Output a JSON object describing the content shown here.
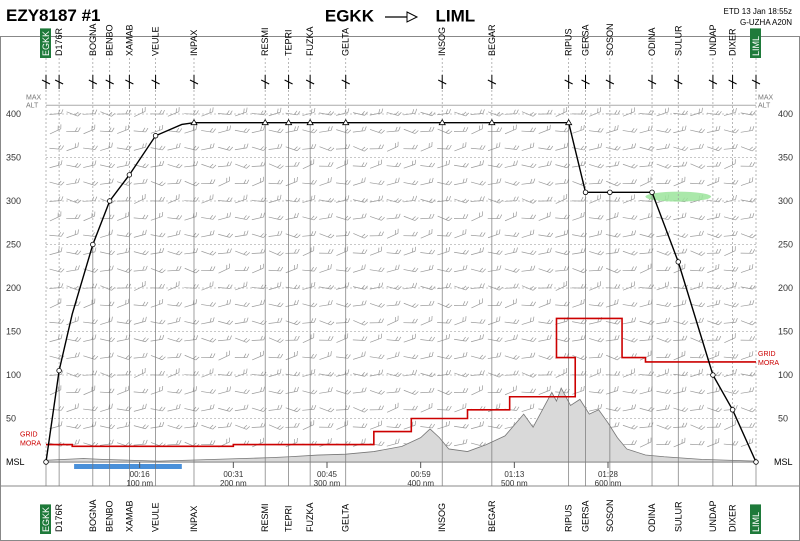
{
  "header": {
    "flight": "EZY8187 #1",
    "origin": "EGKK",
    "destination": "LIML",
    "etd": "ETD 13 Jan 18:55z",
    "aircraft": "G-UZHA A20N"
  },
  "labels": {
    "max_alt_line1": "MAX",
    "max_alt_line2": "ALT",
    "grid_mora_line1": "GRID",
    "grid_mora_line2": "MORA",
    "msl": "MSL"
  },
  "colors": {
    "mora": "#cc0000",
    "terrain": "#d9d9d9",
    "water": "#4a90d9",
    "cloud": "#9be49b",
    "waypoint_badge": "#1e7a3a"
  },
  "chart_data": {
    "type": "line",
    "title": "",
    "ylabel": "",
    "y_ticks": [
      50,
      100,
      150,
      200,
      250,
      300,
      350,
      400
    ],
    "ylim": [
      0,
      430
    ],
    "max_alt": 410,
    "time_ticks": [
      {
        "nm": 100,
        "time": "00:16",
        "dist": "100 nm"
      },
      {
        "nm": 200,
        "time": "00:31",
        "dist": "200 nm"
      },
      {
        "nm": 300,
        "time": "00:45",
        "dist": "300 nm"
      },
      {
        "nm": 400,
        "time": "00:59",
        "dist": "400 nm"
      },
      {
        "nm": 500,
        "time": "01:13",
        "dist": "500 nm"
      },
      {
        "nm": 600,
        "time": "01:28",
        "dist": "600 nm"
      }
    ],
    "waypoints": [
      {
        "name": "EGKK",
        "nm": 0,
        "fl": 0,
        "badge": true
      },
      {
        "name": "D176R",
        "nm": 14,
        "fl": 105
      },
      {
        "name": "BOGNA",
        "nm": 50,
        "fl": 250
      },
      {
        "name": "BENBO",
        "nm": 68,
        "fl": 300
      },
      {
        "name": "XAMAB",
        "nm": 89,
        "fl": 330
      },
      {
        "name": "VEULE",
        "nm": 117,
        "fl": 375
      },
      {
        "name": "INPAX",
        "nm": 158,
        "fl": 390
      },
      {
        "name": "RESMI",
        "nm": 234,
        "fl": 390
      },
      {
        "name": "TEPRI",
        "nm": 259,
        "fl": 390
      },
      {
        "name": "FUZKA",
        "nm": 282,
        "fl": 390
      },
      {
        "name": "GELTA",
        "nm": 320,
        "fl": 390
      },
      {
        "name": "INSOG",
        "nm": 423,
        "fl": 390
      },
      {
        "name": "BEGAR",
        "nm": 476,
        "fl": 390
      },
      {
        "name": "RIPUS",
        "nm": 558,
        "fl": 390
      },
      {
        "name": "GERSA",
        "nm": 576,
        "fl": 310
      },
      {
        "name": "SOSON",
        "nm": 602,
        "fl": 310
      },
      {
        "name": "ODINA",
        "nm": 647,
        "fl": 310
      },
      {
        "name": "SULUR",
        "nm": 675,
        "fl": 230
      },
      {
        "name": "UNDAP",
        "nm": 712,
        "fl": 100
      },
      {
        "name": "DIXER",
        "nm": 733,
        "fl": 60
      },
      {
        "name": "LIML",
        "nm": 758,
        "fl": 0,
        "badge": true
      }
    ],
    "profile": [
      [
        0,
        0
      ],
      [
        14,
        105
      ],
      [
        28,
        170
      ],
      [
        50,
        250
      ],
      [
        68,
        300
      ],
      [
        89,
        330
      ],
      [
        117,
        375
      ],
      [
        145,
        388
      ],
      [
        158,
        390
      ],
      [
        558,
        390
      ],
      [
        576,
        310
      ],
      [
        647,
        310
      ],
      [
        675,
        230
      ],
      [
        712,
        100
      ],
      [
        733,
        60
      ],
      [
        758,
        0
      ]
    ],
    "mora_steps": [
      [
        0,
        20
      ],
      [
        28,
        20
      ],
      [
        28,
        18
      ],
      [
        200,
        18
      ],
      [
        200,
        20
      ],
      [
        350,
        20
      ],
      [
        350,
        35
      ],
      [
        390,
        35
      ],
      [
        390,
        50
      ],
      [
        450,
        50
      ],
      [
        450,
        60
      ],
      [
        495,
        60
      ],
      [
        495,
        75
      ],
      [
        565,
        75
      ],
      [
        565,
        120
      ],
      [
        545,
        120
      ],
      [
        545,
        165
      ],
      [
        615,
        165
      ],
      [
        615,
        120
      ],
      [
        640,
        120
      ],
      [
        640,
        115
      ],
      [
        758,
        115
      ]
    ],
    "terrain": [
      [
        0,
        2
      ],
      [
        40,
        4
      ],
      [
        60,
        3
      ],
      [
        90,
        2
      ],
      [
        120,
        1
      ],
      [
        150,
        2
      ],
      [
        180,
        3
      ],
      [
        210,
        4
      ],
      [
        240,
        5
      ],
      [
        260,
        6
      ],
      [
        290,
        8
      ],
      [
        320,
        9
      ],
      [
        350,
        12
      ],
      [
        380,
        18
      ],
      [
        400,
        28
      ],
      [
        410,
        38
      ],
      [
        420,
        28
      ],
      [
        430,
        15
      ],
      [
        450,
        12
      ],
      [
        470,
        20
      ],
      [
        490,
        30
      ],
      [
        510,
        55
      ],
      [
        520,
        40
      ],
      [
        530,
        60
      ],
      [
        540,
        80
      ],
      [
        545,
        70
      ],
      [
        550,
        85
      ],
      [
        560,
        65
      ],
      [
        570,
        72
      ],
      [
        580,
        55
      ],
      [
        590,
        60
      ],
      [
        600,
        45
      ],
      [
        610,
        28
      ],
      [
        620,
        15
      ],
      [
        640,
        8
      ],
      [
        660,
        6
      ],
      [
        700,
        3
      ],
      [
        758,
        1
      ]
    ],
    "water": [
      [
        30,
        145
      ]
    ],
    "cloud": [
      [
        640,
        300,
        710,
        305
      ]
    ],
    "nm_max": 758
  }
}
